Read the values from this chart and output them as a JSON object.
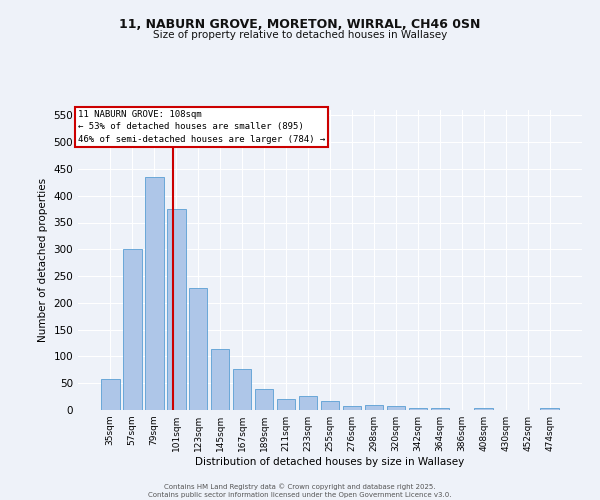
{
  "title_line1": "11, NABURN GROVE, MORETON, WIRRAL, CH46 0SN",
  "title_line2": "Size of property relative to detached houses in Wallasey",
  "xlabel": "Distribution of detached houses by size in Wallasey",
  "ylabel": "Number of detached properties",
  "bin_labels": [
    "35sqm",
    "57sqm",
    "79sqm",
    "101sqm",
    "123sqm",
    "145sqm",
    "167sqm",
    "189sqm",
    "211sqm",
    "233sqm",
    "255sqm",
    "276sqm",
    "298sqm",
    "320sqm",
    "342sqm",
    "364sqm",
    "386sqm",
    "408sqm",
    "430sqm",
    "452sqm",
    "474sqm"
  ],
  "bar_heights": [
    57,
    300,
    435,
    375,
    228,
    113,
    77,
    40,
    20,
    26,
    16,
    8,
    9,
    8,
    4,
    3,
    0,
    3,
    0,
    0,
    3
  ],
  "bar_color": "#aec6e8",
  "bar_edge_color": "#5a9fd4",
  "vline_color": "#cc0000",
  "annotation_title": "11 NABURN GROVE: 108sqm",
  "annotation_line1": "← 53% of detached houses are smaller (895)",
  "annotation_line2": "46% of semi-detached houses are larger (784) →",
  "annotation_box_color": "#ffffff",
  "annotation_box_edge": "#cc0000",
  "ylim": [
    0,
    560
  ],
  "yticks": [
    0,
    50,
    100,
    150,
    200,
    250,
    300,
    350,
    400,
    450,
    500,
    550
  ],
  "background_color": "#eef2f9",
  "grid_color": "#ffffff",
  "footer_line1": "Contains HM Land Registry data © Crown copyright and database right 2025.",
  "footer_line2": "Contains public sector information licensed under the Open Government Licence v3.0."
}
